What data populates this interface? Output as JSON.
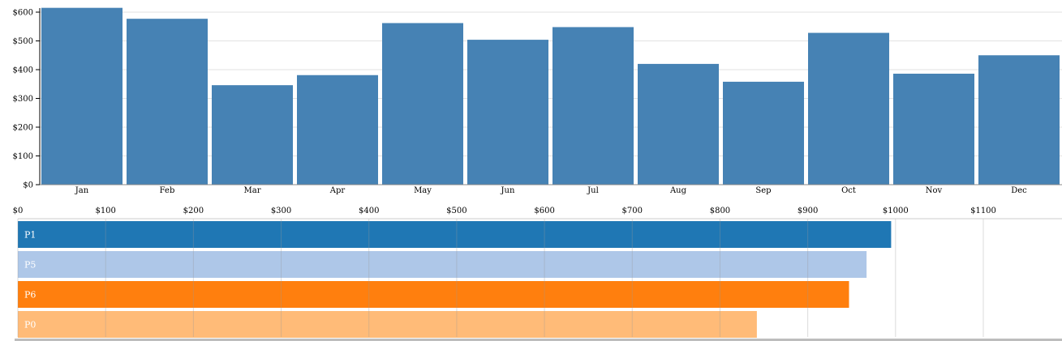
{
  "chart_data": [
    {
      "type": "bar",
      "orientation": "vertical",
      "categories": [
        "Jan",
        "Feb",
        "Mar",
        "Apr",
        "May",
        "Jun",
        "Jul",
        "Aug",
        "Sep",
        "Oct",
        "Nov",
        "Dec"
      ],
      "values": [
        615,
        577,
        346,
        381,
        562,
        504,
        548,
        420,
        358,
        528,
        386,
        450
      ],
      "ylim": [
        0,
        600
      ],
      "y_ticks": [
        "$0",
        "$100",
        "$200",
        "$300",
        "$400",
        "$500",
        "$600"
      ],
      "grid": true,
      "color": "#4682b4"
    },
    {
      "type": "bar",
      "orientation": "horizontal",
      "categories": [
        "P1",
        "P5",
        "P6",
        "P0"
      ],
      "values": [
        995,
        967,
        947,
        842
      ],
      "colors": [
        "#1f77b4",
        "#aec7e8",
        "#ff7f0e",
        "#ffbb78"
      ],
      "xlim": [
        0,
        1100
      ],
      "x_ticks": [
        "$0",
        "$100",
        "$200",
        "$300",
        "$400",
        "$500",
        "$600",
        "$700",
        "$800",
        "$900",
        "$1000",
        "$1100"
      ],
      "grid": true
    }
  ]
}
